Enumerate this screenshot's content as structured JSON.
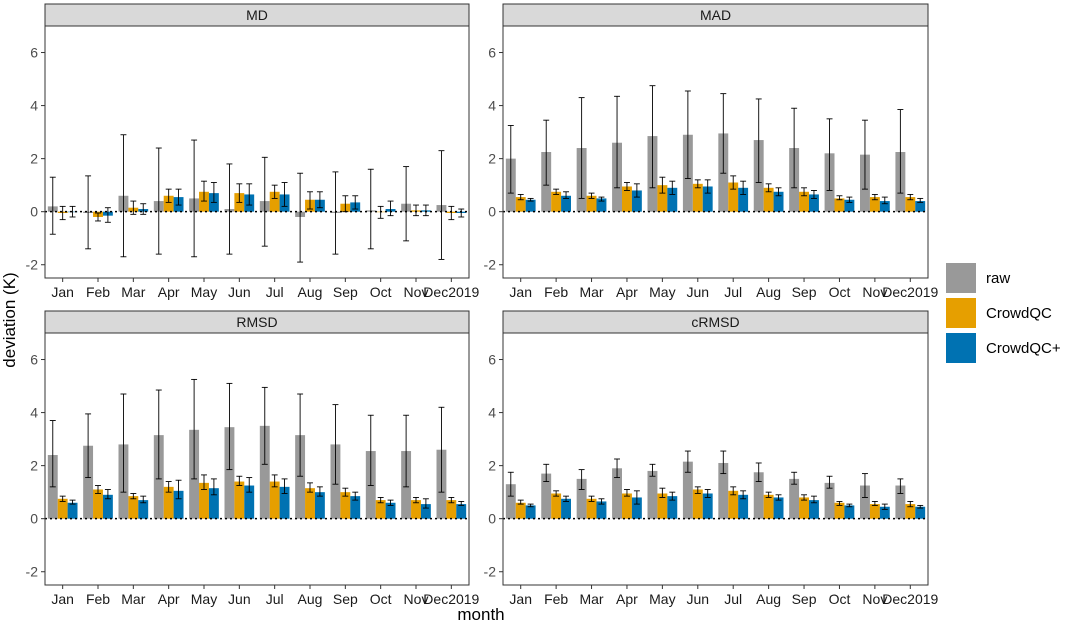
{
  "chart_data": {
    "type": "bar",
    "ylabel": "deviation (K)",
    "xlabel": "month",
    "ylim": [
      -2.5,
      7.0
    ],
    "yticks": [
      -2,
      0,
      2,
      4,
      6
    ],
    "y_tick_labels": [
      "-2",
      "0",
      "2",
      "4",
      "6"
    ],
    "categories": [
      "Jan",
      "Feb",
      "Mar",
      "Apr",
      "May",
      "Jun",
      "Jul",
      "Aug",
      "Sep",
      "Oct",
      "Nov",
      "Dec2019"
    ],
    "legend": {
      "placement": "right",
      "entries": [
        {
          "name": "raw",
          "color": "#999999"
        },
        {
          "name": "CrowdQC",
          "color": "#E69F00"
        },
        {
          "name": "CrowdQC+",
          "color": "#0072B2"
        }
      ]
    },
    "panels": [
      {
        "title": "MD",
        "series": [
          {
            "name": "raw",
            "values": [
              0.2,
              -0.05,
              0.6,
              0.4,
              0.5,
              0.1,
              0.4,
              -0.2,
              -0.05,
              0.05,
              0.3,
              0.25
            ],
            "err": [
              [
                -0.85,
                1.3
              ],
              [
                -1.4,
                1.35
              ],
              [
                -1.7,
                2.9
              ],
              [
                -1.6,
                2.4
              ],
              [
                -1.7,
                2.7
              ],
              [
                -1.6,
                1.8
              ],
              [
                -1.3,
                2.05
              ],
              [
                -1.9,
                1.45
              ],
              [
                -1.6,
                1.5
              ],
              [
                -1.4,
                1.6
              ],
              [
                -1.1,
                1.7
              ],
              [
                -1.8,
                2.3
              ]
            ]
          },
          {
            "name": "CrowdQC",
            "values": [
              -0.05,
              -0.2,
              0.15,
              0.6,
              0.75,
              0.7,
              0.75,
              0.45,
              0.3,
              0.0,
              0.05,
              -0.05
            ],
            "err": [
              [
                -0.3,
                0.2
              ],
              [
                -0.35,
                -0.05
              ],
              [
                -0.1,
                0.4
              ],
              [
                0.35,
                0.85
              ],
              [
                0.4,
                1.15
              ],
              [
                0.35,
                1.05
              ],
              [
                0.5,
                1.0
              ],
              [
                0.1,
                0.75
              ],
              [
                0.0,
                0.6
              ],
              [
                -0.25,
                0.2
              ],
              [
                -0.15,
                0.25
              ],
              [
                -0.3,
                0.2
              ]
            ]
          },
          {
            "name": "CrowdQC+",
            "values": [
              0.0,
              -0.15,
              0.1,
              0.55,
              0.7,
              0.65,
              0.65,
              0.45,
              0.35,
              0.1,
              0.05,
              -0.05
            ],
            "err": [
              [
                -0.2,
                0.2
              ],
              [
                -0.4,
                0.15
              ],
              [
                -0.1,
                0.3
              ],
              [
                0.25,
                0.85
              ],
              [
                0.35,
                1.1
              ],
              [
                0.25,
                1.05
              ],
              [
                0.2,
                1.1
              ],
              [
                0.15,
                0.75
              ],
              [
                0.1,
                0.6
              ],
              [
                -0.15,
                0.4
              ],
              [
                -0.15,
                0.25
              ],
              [
                -0.2,
                0.1
              ]
            ]
          }
        ]
      },
      {
        "title": "MAD",
        "series": [
          {
            "name": "raw",
            "values": [
              2.0,
              2.25,
              2.4,
              2.6,
              2.85,
              2.9,
              2.95,
              2.7,
              2.4,
              2.2,
              2.15,
              2.25
            ],
            "err": [
              [
                0.7,
                3.25
              ],
              [
                1.0,
                3.45
              ],
              [
                0.5,
                4.3
              ],
              [
                0.9,
                4.35
              ],
              [
                0.9,
                4.75
              ],
              [
                1.25,
                4.55
              ],
              [
                1.45,
                4.45
              ],
              [
                1.1,
                4.25
              ],
              [
                0.9,
                3.9
              ],
              [
                0.8,
                3.5
              ],
              [
                0.85,
                3.45
              ],
              [
                0.7,
                3.85
              ]
            ]
          },
          {
            "name": "CrowdQC",
            "values": [
              0.55,
              0.75,
              0.6,
              0.95,
              1.0,
              1.05,
              1.1,
              0.9,
              0.75,
              0.5,
              0.55,
              0.55
            ],
            "err": [
              [
                0.45,
                0.65
              ],
              [
                0.65,
                0.85
              ],
              [
                0.5,
                0.7
              ],
              [
                0.8,
                1.1
              ],
              [
                0.7,
                1.3
              ],
              [
                0.9,
                1.2
              ],
              [
                0.85,
                1.35
              ],
              [
                0.75,
                1.05
              ],
              [
                0.6,
                0.9
              ],
              [
                0.45,
                0.6
              ],
              [
                0.45,
                0.65
              ],
              [
                0.45,
                0.65
              ]
            ]
          },
          {
            "name": "CrowdQC+",
            "values": [
              0.45,
              0.6,
              0.5,
              0.8,
              0.9,
              0.95,
              0.9,
              0.75,
              0.65,
              0.45,
              0.4,
              0.4
            ],
            "err": [
              [
                0.4,
                0.5
              ],
              [
                0.5,
                0.75
              ],
              [
                0.4,
                0.55
              ],
              [
                0.55,
                1.05
              ],
              [
                0.65,
                1.15
              ],
              [
                0.7,
                1.2
              ],
              [
                0.65,
                1.15
              ],
              [
                0.6,
                0.9
              ],
              [
                0.5,
                0.8
              ],
              [
                0.35,
                0.55
              ],
              [
                0.3,
                0.55
              ],
              [
                0.35,
                0.5
              ]
            ]
          }
        ]
      },
      {
        "title": "RMSD",
        "series": [
          {
            "name": "raw",
            "values": [
              2.4,
              2.75,
              2.8,
              3.15,
              3.35,
              3.45,
              3.5,
              3.15,
              2.8,
              2.55,
              2.55,
              2.6
            ],
            "err": [
              [
                1.2,
                3.7
              ],
              [
                1.55,
                3.95
              ],
              [
                1.0,
                4.7
              ],
              [
                1.5,
                4.85
              ],
              [
                1.5,
                5.25
              ],
              [
                1.85,
                5.1
              ],
              [
                2.05,
                4.95
              ],
              [
                1.6,
                4.7
              ],
              [
                1.3,
                4.3
              ],
              [
                1.25,
                3.9
              ],
              [
                1.2,
                3.9
              ],
              [
                1.0,
                4.2
              ]
            ]
          },
          {
            "name": "CrowdQC",
            "values": [
              0.75,
              1.1,
              0.85,
              1.2,
              1.35,
              1.4,
              1.4,
              1.15,
              1.0,
              0.7,
              0.7,
              0.7
            ],
            "err": [
              [
                0.65,
                0.85
              ],
              [
                0.95,
                1.25
              ],
              [
                0.75,
                0.95
              ],
              [
                1.0,
                1.4
              ],
              [
                1.1,
                1.65
              ],
              [
                1.25,
                1.6
              ],
              [
                1.2,
                1.65
              ],
              [
                1.0,
                1.35
              ],
              [
                0.85,
                1.15
              ],
              [
                0.6,
                0.8
              ],
              [
                0.6,
                0.8
              ],
              [
                0.6,
                0.8
              ]
            ]
          },
          {
            "name": "CrowdQC+",
            "values": [
              0.6,
              0.9,
              0.7,
              1.05,
              1.15,
              1.25,
              1.2,
              1.0,
              0.85,
              0.6,
              0.55,
              0.55
            ],
            "err": [
              [
                0.55,
                0.7
              ],
              [
                0.75,
                1.1
              ],
              [
                0.6,
                0.85
              ],
              [
                0.75,
                1.45
              ],
              [
                0.9,
                1.5
              ],
              [
                1.0,
                1.55
              ],
              [
                0.95,
                1.5
              ],
              [
                0.85,
                1.2
              ],
              [
                0.7,
                1.0
              ],
              [
                0.5,
                0.7
              ],
              [
                0.4,
                0.75
              ],
              [
                0.5,
                0.65
              ]
            ]
          }
        ]
      },
      {
        "title": "cRMSD",
        "series": [
          {
            "name": "raw",
            "values": [
              1.3,
              1.7,
              1.5,
              1.9,
              1.8,
              2.15,
              2.1,
              1.75,
              1.5,
              1.35,
              1.25,
              1.25
            ],
            "err": [
              [
                0.85,
                1.75
              ],
              [
                1.4,
                2.05
              ],
              [
                1.1,
                1.85
              ],
              [
                1.55,
                2.25
              ],
              [
                1.6,
                2.05
              ],
              [
                1.75,
                2.55
              ],
              [
                1.7,
                2.55
              ],
              [
                1.4,
                2.1
              ],
              [
                1.3,
                1.75
              ],
              [
                1.15,
                1.6
              ],
              [
                0.8,
                1.7
              ],
              [
                0.95,
                1.5
              ]
            ]
          },
          {
            "name": "CrowdQC",
            "values": [
              0.6,
              0.95,
              0.75,
              0.95,
              0.95,
              1.1,
              1.05,
              0.9,
              0.8,
              0.6,
              0.55,
              0.55
            ],
            "err": [
              [
                0.55,
                0.7
              ],
              [
                0.85,
                1.05
              ],
              [
                0.65,
                0.85
              ],
              [
                0.85,
                1.1
              ],
              [
                0.8,
                1.15
              ],
              [
                0.95,
                1.2
              ],
              [
                0.9,
                1.2
              ],
              [
                0.8,
                1.0
              ],
              [
                0.7,
                0.9
              ],
              [
                0.5,
                0.65
              ],
              [
                0.5,
                0.65
              ],
              [
                0.45,
                0.65
              ]
            ]
          },
          {
            "name": "CrowdQC+",
            "values": [
              0.5,
              0.75,
              0.65,
              0.8,
              0.85,
              0.95,
              0.9,
              0.8,
              0.7,
              0.5,
              0.45,
              0.45
            ],
            "err": [
              [
                0.45,
                0.55
              ],
              [
                0.65,
                0.85
              ],
              [
                0.55,
                0.75
              ],
              [
                0.55,
                1.05
              ],
              [
                0.7,
                1.0
              ],
              [
                0.8,
                1.1
              ],
              [
                0.75,
                1.05
              ],
              [
                0.7,
                0.9
              ],
              [
                0.6,
                0.85
              ],
              [
                0.45,
                0.55
              ],
              [
                0.35,
                0.55
              ],
              [
                0.4,
                0.5
              ]
            ]
          }
        ]
      }
    ]
  }
}
